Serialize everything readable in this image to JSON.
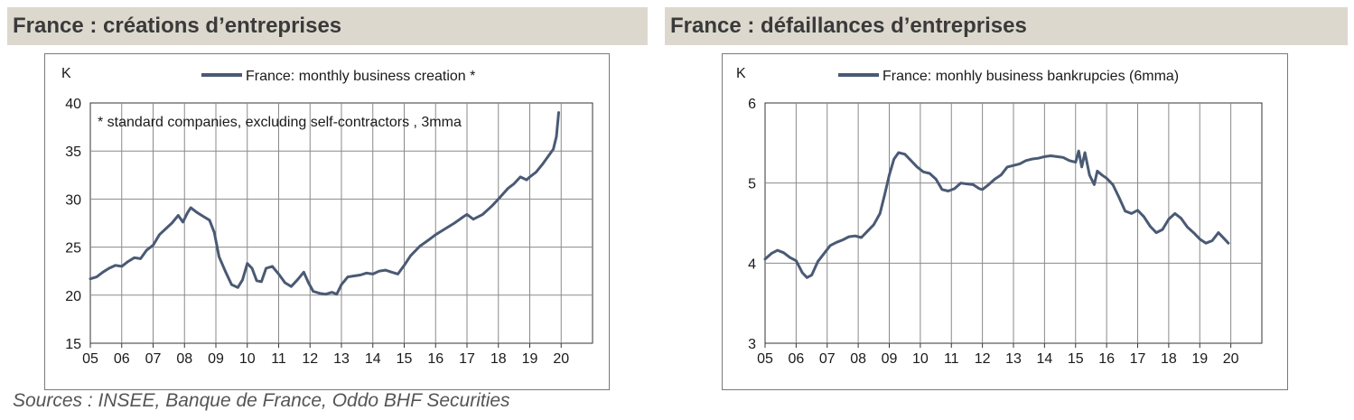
{
  "titles": {
    "left": "France : créations d’entreprises",
    "right": "France : défaillances d’entreprises"
  },
  "sources": "Sources : INSEE, Banque de France, Oddo BHF Securities",
  "colors": {
    "line": "#4a5a74",
    "grid": "#8a8a8a",
    "title_bg": "#ddd8ce"
  },
  "chart_data": [
    {
      "type": "line",
      "unit_label": "K",
      "annotation": "* standard companies, excluding self-contractors , 3mma",
      "xticks": [
        "05",
        "06",
        "07",
        "08",
        "09",
        "10",
        "11",
        "12",
        "13",
        "14",
        "15",
        "16",
        "17",
        "18",
        "19",
        "20"
      ],
      "xlim": [
        2005,
        2021
      ],
      "ylim": [
        15,
        40
      ],
      "yticks": [
        15,
        20,
        25,
        30,
        35,
        40
      ],
      "grid": true,
      "legend": "top-center",
      "series": [
        {
          "name": "France: monthly business creation *",
          "x": [
            2005.0,
            2005.2,
            2005.4,
            2005.6,
            2005.8,
            2006.0,
            2006.2,
            2006.4,
            2006.6,
            2006.8,
            2007.0,
            2007.2,
            2007.4,
            2007.6,
            2007.8,
            2007.95,
            2008.1,
            2008.2,
            2008.4,
            2008.6,
            2008.8,
            2008.95,
            2009.1,
            2009.3,
            2009.5,
            2009.7,
            2009.85,
            2010.0,
            2010.15,
            2010.3,
            2010.45,
            2010.6,
            2010.8,
            2011.0,
            2011.2,
            2011.4,
            2011.6,
            2011.8,
            2011.95,
            2012.1,
            2012.3,
            2012.5,
            2012.7,
            2012.85,
            2013.0,
            2013.2,
            2013.4,
            2013.6,
            2013.8,
            2014.0,
            2014.2,
            2014.4,
            2014.6,
            2014.8,
            2015.0,
            2015.2,
            2015.5,
            2015.8,
            2016.0,
            2016.3,
            2016.6,
            2016.9,
            2017.0,
            2017.2,
            2017.5,
            2017.8,
            2018.0,
            2018.3,
            2018.5,
            2018.7,
            2018.9,
            2019.0,
            2019.2,
            2019.4,
            2019.6,
            2019.75,
            2019.85,
            2019.92
          ],
          "values": [
            21.7,
            21.9,
            22.4,
            22.8,
            23.1,
            23.0,
            23.5,
            23.9,
            23.8,
            24.7,
            25.2,
            26.3,
            26.9,
            27.5,
            28.3,
            27.6,
            28.6,
            29.1,
            28.6,
            28.2,
            27.8,
            26.5,
            24.0,
            22.5,
            21.1,
            20.8,
            21.6,
            23.3,
            22.8,
            21.5,
            21.4,
            22.8,
            23.0,
            22.2,
            21.3,
            20.9,
            21.6,
            22.4,
            21.3,
            20.4,
            20.2,
            20.1,
            20.3,
            20.1,
            21.1,
            21.9,
            22.0,
            22.1,
            22.3,
            22.2,
            22.5,
            22.6,
            22.4,
            22.2,
            23.1,
            24.1,
            25.1,
            25.8,
            26.3,
            26.9,
            27.5,
            28.2,
            28.4,
            27.9,
            28.4,
            29.3,
            30.0,
            31.1,
            31.6,
            32.3,
            32.0,
            32.3,
            32.8,
            33.6,
            34.5,
            35.2,
            36.5,
            39.0
          ]
        }
      ]
    },
    {
      "type": "line",
      "unit_label": "K",
      "xticks": [
        "05",
        "06",
        "07",
        "08",
        "09",
        "10",
        "11",
        "12",
        "13",
        "14",
        "15",
        "16",
        "17",
        "18",
        "19",
        "20"
      ],
      "xlim": [
        2005,
        2021
      ],
      "ylim": [
        3,
        6
      ],
      "yticks": [
        3,
        4,
        5,
        6
      ],
      "grid": true,
      "legend": "top-center",
      "series": [
        {
          "name": "France: monhly business bankrupcies (6mma)",
          "x": [
            2005.0,
            2005.2,
            2005.4,
            2005.6,
            2005.8,
            2006.0,
            2006.2,
            2006.35,
            2006.5,
            2006.7,
            2006.9,
            2007.1,
            2007.3,
            2007.5,
            2007.7,
            2007.9,
            2008.1,
            2008.3,
            2008.5,
            2008.7,
            2008.85,
            2009.0,
            2009.15,
            2009.3,
            2009.5,
            2009.7,
            2009.9,
            2010.1,
            2010.3,
            2010.5,
            2010.7,
            2010.9,
            2011.1,
            2011.3,
            2011.5,
            2011.7,
            2011.9,
            2012.0,
            2012.2,
            2012.4,
            2012.6,
            2012.8,
            2013.0,
            2013.2,
            2013.4,
            2013.6,
            2013.8,
            2014.0,
            2014.2,
            2014.4,
            2014.6,
            2014.8,
            2015.0,
            2015.1,
            2015.2,
            2015.3,
            2015.45,
            2015.6,
            2015.7,
            2015.85,
            2016.0,
            2016.2,
            2016.4,
            2016.6,
            2016.8,
            2017.0,
            2017.2,
            2017.4,
            2017.6,
            2017.8,
            2018.0,
            2018.2,
            2018.4,
            2018.6,
            2018.8,
            2019.0,
            2019.2,
            2019.4,
            2019.6,
            2019.8,
            2019.92
          ],
          "values": [
            4.05,
            4.12,
            4.16,
            4.13,
            4.07,
            4.03,
            3.88,
            3.82,
            3.85,
            4.02,
            4.12,
            4.22,
            4.26,
            4.29,
            4.33,
            4.34,
            4.32,
            4.4,
            4.48,
            4.62,
            4.85,
            5.1,
            5.3,
            5.38,
            5.36,
            5.28,
            5.2,
            5.14,
            5.12,
            5.05,
            4.92,
            4.9,
            4.93,
            5.0,
            4.99,
            4.98,
            4.93,
            4.92,
            4.98,
            5.05,
            5.1,
            5.2,
            5.22,
            5.24,
            5.28,
            5.3,
            5.31,
            5.33,
            5.34,
            5.33,
            5.32,
            5.28,
            5.26,
            5.4,
            5.2,
            5.38,
            5.1,
            4.98,
            5.15,
            5.1,
            5.06,
            4.98,
            4.82,
            4.65,
            4.62,
            4.66,
            4.58,
            4.46,
            4.38,
            4.42,
            4.55,
            4.62,
            4.56,
            4.45,
            4.38,
            4.3,
            4.25,
            4.28,
            4.38,
            4.3,
            4.25
          ]
        }
      ]
    }
  ]
}
